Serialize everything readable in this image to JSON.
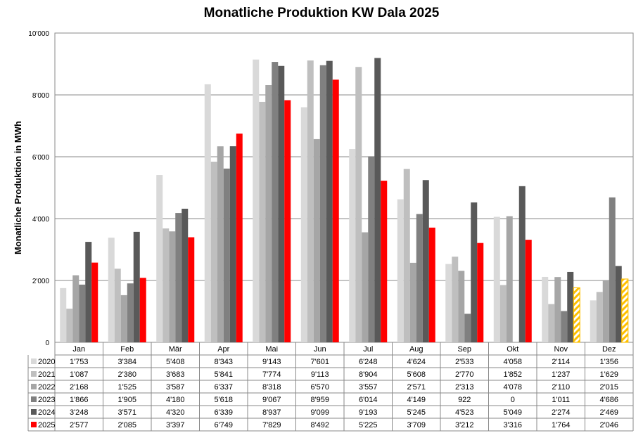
{
  "chart_data": {
    "type": "bar",
    "title": "Monatliche Produktion KW Dala 2025",
    "xlabel": "",
    "ylabel": "Monatliche Produktion in MWh",
    "ylim": [
      0,
      10000
    ],
    "yticks": [
      0,
      2000,
      4000,
      6000,
      8000,
      10000
    ],
    "ytick_labels": [
      "0",
      "2'000",
      "4'000",
      "6'000",
      "8'000",
      "10'000"
    ],
    "grid": true,
    "legend": "data-table-below",
    "categories": [
      "Jan",
      "Feb",
      "Mär",
      "Apr",
      "Mai",
      "Jun",
      "Jul",
      "Aug",
      "Sep",
      "Okt",
      "Nov",
      "Dez"
    ],
    "series": [
      {
        "name": "2020",
        "color": "#d9d9d9",
        "values": [
          1753,
          3384,
          5408,
          8343,
          9143,
          7601,
          6248,
          4624,
          2533,
          4058,
          2114,
          1356
        ],
        "labels": [
          "1'753",
          "3'384",
          "5'408",
          "8'343",
          "9'143",
          "7'601",
          "6'248",
          "4'624",
          "2'533",
          "4'058",
          "2'114",
          "1'356"
        ]
      },
      {
        "name": "2021",
        "color": "#bfbfbf",
        "values": [
          1087,
          2380,
          3683,
          5841,
          7774,
          9113,
          8904,
          5608,
          2770,
          1852,
          1237,
          1629
        ],
        "labels": [
          "1'087",
          "2'380",
          "3'683",
          "5'841",
          "7'774",
          "9'113",
          "8'904",
          "5'608",
          "2'770",
          "1'852",
          "1'237",
          "1'629"
        ]
      },
      {
        "name": "2022",
        "color": "#a6a6a6",
        "values": [
          2168,
          1525,
          3587,
          6337,
          8318,
          6570,
          3557,
          2571,
          2313,
          4078,
          2110,
          2015
        ],
        "labels": [
          "2'168",
          "1'525",
          "3'587",
          "6'337",
          "8'318",
          "6'570",
          "3'557",
          "2'571",
          "2'313",
          "4'078",
          "2'110",
          "2'015"
        ]
      },
      {
        "name": "2023",
        "color": "#808080",
        "values": [
          1866,
          1905,
          4180,
          5618,
          9067,
          8959,
          6014,
          4149,
          922,
          0,
          1011,
          4686
        ],
        "labels": [
          "1'866",
          "1'905",
          "4'180",
          "5'618",
          "9'067",
          "8'959",
          "6'014",
          "4'149",
          "922",
          "0",
          "1'011",
          "4'686"
        ]
      },
      {
        "name": "2024",
        "color": "#595959",
        "values": [
          3248,
          3571,
          4320,
          6339,
          8937,
          9099,
          9193,
          5245,
          4523,
          5049,
          2274,
          2469
        ],
        "labels": [
          "3'248",
          "3'571",
          "4'320",
          "6'339",
          "8'937",
          "9'099",
          "9'193",
          "5'245",
          "4'523",
          "5'049",
          "2'274",
          "2'469"
        ]
      },
      {
        "name": "2025",
        "color": "#ff0000",
        "forecast_color": "#ffc000",
        "forecast_months": [
          "Nov",
          "Dez"
        ],
        "values": [
          2577,
          2085,
          3397,
          6749,
          7829,
          8492,
          5225,
          3709,
          3212,
          3316,
          1764,
          2046
        ],
        "labels": [
          "2'577",
          "2'085",
          "3'397",
          "6'749",
          "7'829",
          "8'492",
          "5'225",
          "3'709",
          "3'212",
          "3'316",
          "1'764",
          "2'046"
        ]
      }
    ]
  }
}
